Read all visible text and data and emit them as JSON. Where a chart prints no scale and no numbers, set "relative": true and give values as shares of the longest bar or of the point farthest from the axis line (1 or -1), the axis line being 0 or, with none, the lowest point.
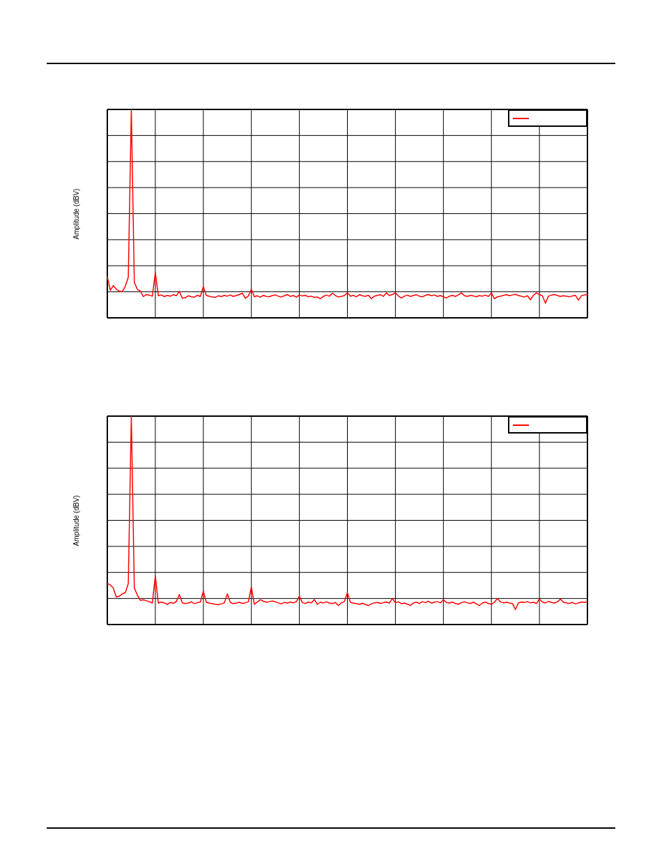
{
  "chart_data": [
    {
      "type": "line",
      "ylabel": "Amplitude (dBV)",
      "relative": true,
      "grid": true,
      "categories": [
        null,
        null,
        null,
        null,
        null,
        null,
        null,
        null,
        null,
        null,
        null,
        null,
        null,
        null,
        null,
        null,
        null,
        null,
        null,
        null,
        null,
        null,
        null,
        null,
        null,
        null,
        null,
        null,
        null,
        null,
        null,
        null,
        null,
        null,
        null,
        null,
        null,
        null,
        null,
        null,
        null,
        null,
        null,
        null,
        null,
        null,
        null,
        null,
        null,
        null,
        null,
        null,
        null,
        null,
        null,
        null,
        null,
        null,
        null,
        null,
        null,
        null,
        null,
        null,
        null,
        null,
        null,
        null,
        null,
        null,
        null,
        null,
        null,
        null,
        null,
        null,
        null,
        null,
        null,
        null,
        null,
        null,
        null,
        null,
        null,
        null,
        null,
        null,
        null,
        null,
        null,
        null,
        null,
        null,
        null,
        null,
        null,
        null,
        null,
        null,
        null,
        null,
        null,
        null,
        null,
        null,
        null,
        null,
        null,
        null,
        null,
        null,
        null,
        null,
        null,
        null,
        null,
        null,
        null,
        null,
        null,
        null,
        null,
        null,
        null,
        null,
        null,
        null,
        null,
        null,
        null,
        null,
        null,
        null,
        null,
        null,
        null,
        null,
        null,
        null,
        null,
        null,
        null,
        null,
        null,
        null,
        null,
        null,
        null,
        null,
        null,
        null,
        null,
        null,
        null,
        null,
        null,
        null,
        null,
        null,
        null
      ],
      "series": [
        {
          "color": "#ff0000",
          "values": [
            0.198,
            0.132,
            0.155,
            0.137,
            0.128,
            0.126,
            0.152,
            0.196,
            1,
            0.17,
            0.137,
            0.128,
            0.102,
            0.112,
            0.109,
            0.104,
            0.218,
            0.106,
            0.11,
            0.102,
            0.108,
            0.104,
            0.111,
            0.106,
            0.127,
            0.094,
            0.097,
            0.106,
            0.101,
            0.099,
            0.108,
            0.103,
            0.15,
            0.107,
            0.104,
            0.1,
            0.098,
            0.106,
            0.102,
            0.108,
            0.104,
            0.11,
            0.103,
            0.107,
            0.112,
            0.118,
            0.094,
            0.105,
            0.137,
            0.101,
            0.106,
            0.099,
            0.108,
            0.103,
            0.101,
            0.107,
            0.11,
            0.104,
            0.1,
            0.106,
            0.112,
            0.103,
            0.107,
            0.099,
            0.11,
            0.105,
            0.108,
            0.101,
            0.104,
            0.098,
            0.1,
            0.092,
            0.103,
            0.109,
            0.104,
            0.118,
            0.107,
            0.1,
            0.103,
            0.107,
            0.12,
            0.104,
            0.108,
            0.101,
            0.111,
            0.106,
            0.103,
            0.109,
            0.092,
            0.104,
            0.108,
            0.111,
            0.103,
            0.12,
            0.107,
            0.112,
            0.12,
            0.105,
            0.095,
            0.104,
            0.109,
            0.103,
            0.107,
            0.111,
            0.104,
            0.101,
            0.108,
            0.112,
            0.106,
            0.11,
            0.103,
            0.107,
            0.101,
            0.095,
            0.104,
            0.108,
            0.103,
            0.11,
            0.12,
            0.106,
            0.103,
            0.108,
            0.105,
            0.101,
            0.107,
            0.104,
            0.109,
            0.103,
            0.12,
            0.092,
            0.101,
            0.104,
            0.108,
            0.111,
            0.106,
            0.11,
            0.113,
            0.107,
            0.104,
            0.1,
            0.106,
            0.087,
            0.108,
            0.12,
            0.111,
            0.106,
            0.07,
            0.104,
            0.109,
            0.112,
            0.107,
            0.103,
            0.106,
            0.104,
            0.101,
            0.105,
            0.108,
            0.085,
            0.106,
            0.11,
            0.11
          ]
        }
      ]
    },
    {
      "type": "line",
      "ylabel": "Amplitude (dBV)",
      "relative": true,
      "grid": true,
      "categories": [
        null,
        null,
        null,
        null,
        null,
        null,
        null,
        null,
        null,
        null,
        null,
        null,
        null,
        null,
        null,
        null,
        null,
        null,
        null,
        null,
        null,
        null,
        null,
        null,
        null,
        null,
        null,
        null,
        null,
        null,
        null,
        null,
        null,
        null,
        null,
        null,
        null,
        null,
        null,
        null,
        null,
        null,
        null,
        null,
        null,
        null,
        null,
        null,
        null,
        null,
        null,
        null,
        null,
        null,
        null,
        null,
        null,
        null,
        null,
        null,
        null,
        null,
        null,
        null,
        null,
        null,
        null,
        null,
        null,
        null,
        null,
        null,
        null,
        null,
        null,
        null,
        null,
        null,
        null,
        null,
        null,
        null,
        null,
        null,
        null,
        null,
        null,
        null,
        null,
        null,
        null,
        null,
        null,
        null,
        null,
        null,
        null,
        null,
        null,
        null,
        null,
        null,
        null,
        null,
        null,
        null,
        null,
        null,
        null,
        null,
        null,
        null,
        null,
        null,
        null,
        null,
        null,
        null,
        null,
        null,
        null,
        null,
        null,
        null,
        null,
        null,
        null,
        null,
        null,
        null,
        null,
        null,
        null,
        null,
        null,
        null,
        null,
        null,
        null,
        null,
        null,
        null,
        null,
        null,
        null,
        null,
        null,
        null,
        null,
        null,
        null,
        null,
        null,
        null,
        null,
        null,
        null,
        null,
        null,
        null,
        null
      ],
      "series": [
        {
          "color": "#ff0000",
          "values": [
            0.197,
            0.19,
            0.175,
            0.132,
            0.136,
            0.147,
            0.153,
            0.197,
            1,
            0.175,
            0.142,
            0.116,
            0.119,
            0.114,
            0.11,
            0.103,
            0.233,
            0.103,
            0.108,
            0.104,
            0.097,
            0.106,
            0.102,
            0.11,
            0.144,
            0.104,
            0.101,
            0.103,
            0.109,
            0.1,
            0.105,
            0.108,
            0.16,
            0.106,
            0.103,
            0.1,
            0.097,
            0.095,
            0.099,
            0.104,
            0.147,
            0.106,
            0.1,
            0.103,
            0.107,
            0.101,
            0.104,
            0.109,
            0.18,
            0.097,
            0.108,
            0.119,
            0.112,
            0.107,
            0.11,
            0.113,
            0.109,
            0.104,
            0.099,
            0.106,
            0.103,
            0.108,
            0.104,
            0.11,
            0.136,
            0.105,
            0.101,
            0.108,
            0.104,
            0.12,
            0.097,
            0.107,
            0.104,
            0.109,
            0.103,
            0.1,
            0.106,
            0.091,
            0.104,
            0.11,
            0.153,
            0.106,
            0.103,
            0.1,
            0.097,
            0.102,
            0.096,
            0.091,
            0.099,
            0.104,
            0.106,
            0.101,
            0.105,
            0.108,
            0.103,
            0.125,
            0.104,
            0.109,
            0.1,
            0.103,
            0.098,
            0.091,
            0.104,
            0.107,
            0.101,
            0.11,
            0.105,
            0.112,
            0.103,
            0.107,
            0.11,
            0.104,
            0.119,
            0.106,
            0.103,
            0.108,
            0.101,
            0.097,
            0.105,
            0.109,
            0.104,
            0.101,
            0.107,
            0.099,
            0.091,
            0.103,
            0.108,
            0.101,
            0.097,
            0.107,
            0.125,
            0.109,
            0.104,
            0.107,
            0.103,
            0.101,
            0.072,
            0.104,
            0.108,
            0.106,
            0.11,
            0.104,
            0.107,
            0.101,
            0.122,
            0.108,
            0.104,
            0.111,
            0.106,
            0.103,
            0.109,
            0.122,
            0.107,
            0.104,
            0.101,
            0.106,
            0.099,
            0.104,
            0.108,
            0.106,
            0.11
          ]
        }
      ]
    }
  ]
}
